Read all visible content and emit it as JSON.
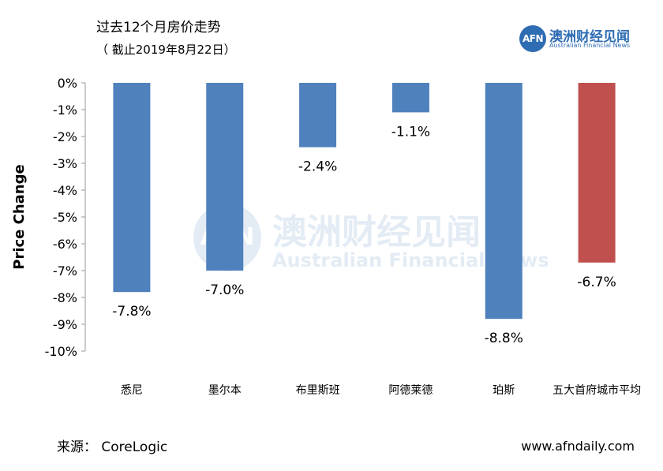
{
  "chart_data": {
    "type": "bar",
    "title": "过去12个月房价走势",
    "subtitle": "（ 截止2019年8月22日）",
    "ylabel": "Price Change",
    "xlabel": "",
    "categories": [
      "悉尼",
      "墨尔本",
      "布里斯班",
      "阿德莱德",
      "珀斯",
      "五大首府城市平均"
    ],
    "values": [
      -7.8,
      -7.0,
      -2.4,
      -1.1,
      -8.8,
      -6.7
    ],
    "value_labels": [
      "-7.8%",
      "-7.0%",
      "-2.4%",
      "-1.1%",
      "-8.8%",
      "-6.7%"
    ],
    "ylim": [
      -10,
      0
    ],
    "yticks": [
      0,
      -1,
      -2,
      -3,
      -4,
      -5,
      -6,
      -7,
      -8,
      -9,
      -10
    ],
    "ytick_labels": [
      "0%",
      "-1%",
      "-2%",
      "-3%",
      "-4%",
      "-5%",
      "-6%",
      "-7%",
      "-8%",
      "-9%",
      "-10%"
    ],
    "grid": false,
    "legend": "none",
    "colors": [
      "#4f81bd",
      "#4f81bd",
      "#4f81bd",
      "#4f81bd",
      "#4f81bd",
      "#c0504d"
    ]
  },
  "branding": {
    "logo_mark": "AFN",
    "logo_cn": "澳洲财经见闻",
    "logo_en": "Australian Financial News",
    "brand_color": "#2f6db3"
  },
  "footer": {
    "source": "来源：  CoreLogic",
    "site": "www.afndaily.com"
  }
}
